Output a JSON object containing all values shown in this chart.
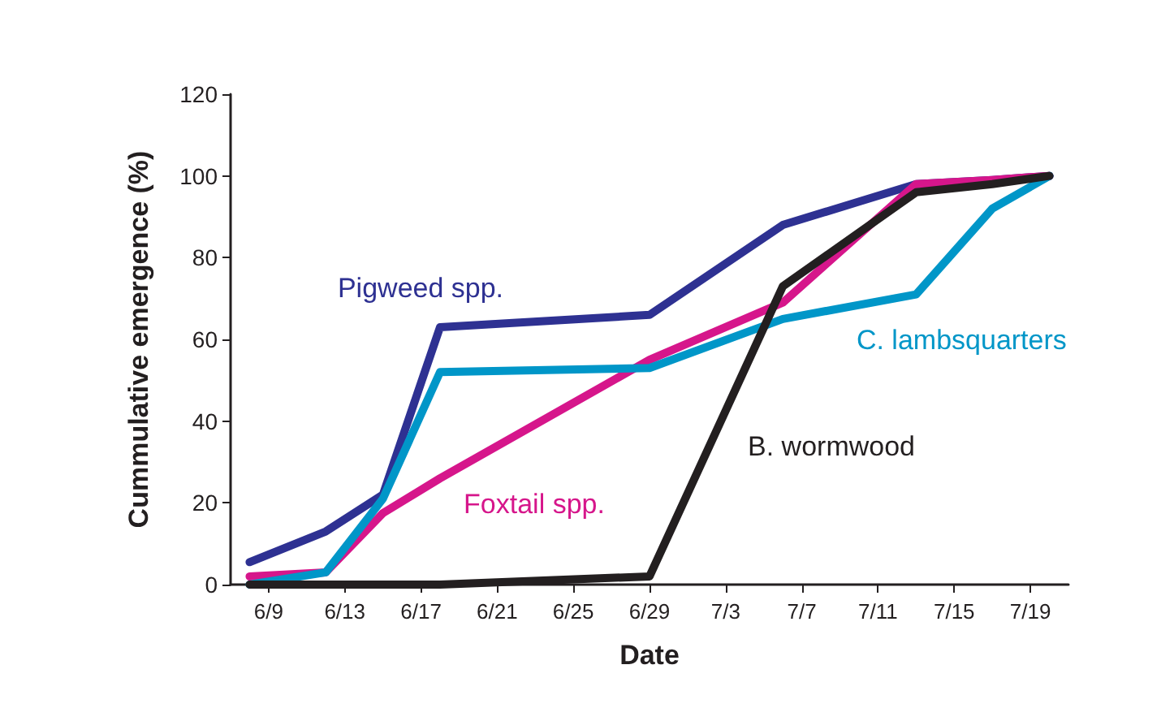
{
  "chart_data": {
    "type": "line",
    "xlabel": "Date",
    "ylabel": "Cummulative emergence (%)",
    "x": [
      "--06-08",
      "--06-12",
      "--06-15",
      "--06-18",
      "--06-29",
      "--07-06",
      "--07-13",
      "--07-17",
      "--07-20"
    ],
    "series": [
      {
        "name": "Pigweed spp.",
        "color": "#2e3192",
        "values": [
          5.5,
          13,
          22,
          63,
          66,
          88,
          98,
          99,
          100
        ]
      },
      {
        "name": "Foxtail spp.",
        "color": "#d6168b",
        "values": [
          2,
          3,
          17.5,
          26,
          55,
          69,
          98,
          99,
          100
        ]
      },
      {
        "name": "C. lambsquarters",
        "color": "#0096c8",
        "values": [
          0,
          3,
          21,
          52,
          53,
          65,
          71,
          92,
          100
        ]
      },
      {
        "name": "B. wormwood",
        "color": "#231f20",
        "values": [
          0,
          0,
          0,
          0,
          2,
          73,
          96,
          98,
          100
        ]
      }
    ],
    "xlim": [
      "--06-07",
      "--07-21"
    ],
    "xticks": [
      {
        "value": "--06-09",
        "label": "6/9"
      },
      {
        "value": "--06-13",
        "label": "6/13"
      },
      {
        "value": "--06-17",
        "label": "6/17"
      },
      {
        "value": "--06-21",
        "label": "6/21"
      },
      {
        "value": "--06-25",
        "label": "6/25"
      },
      {
        "value": "--06-29",
        "label": "6/29"
      },
      {
        "value": "--07-03",
        "label": "7/3"
      },
      {
        "value": "--07-07",
        "label": "7/7"
      },
      {
        "value": "--07-11",
        "label": "7/11"
      },
      {
        "value": "--07-15",
        "label": "7/15"
      },
      {
        "value": "--07-19",
        "label": "7/19"
      }
    ],
    "ylim": [
      0,
      120
    ],
    "yticks": [
      0,
      20,
      40,
      60,
      80,
      100,
      120
    ],
    "grid": false,
    "legend": false,
    "marker": "none",
    "line_style": "solid"
  }
}
